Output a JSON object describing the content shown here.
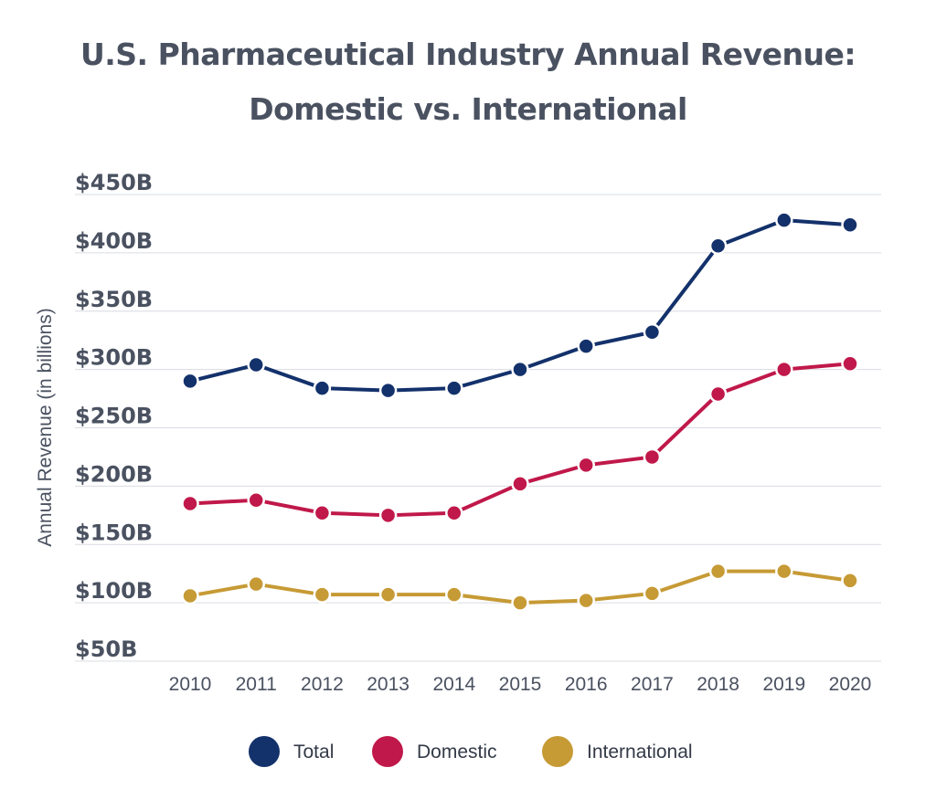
{
  "chart_data": {
    "type": "line",
    "title_lines": [
      "U.S. Pharmaceutical Industry Annual Revenue:",
      "Domestic vs. International"
    ],
    "ylabel": "Annual Revenue (in billions)",
    "xlabel": "",
    "categories": [
      "2010",
      "2011",
      "2012",
      "2013",
      "2014",
      "2015",
      "2016",
      "2017",
      "2018",
      "2019",
      "2020"
    ],
    "ylim": [
      50,
      450
    ],
    "yticks": [
      450,
      400,
      350,
      300,
      250,
      200,
      150,
      100,
      50
    ],
    "ytick_labels": [
      "$450B",
      "$400B",
      "$350B",
      "$300B",
      "$250B",
      "$200B",
      "$150B",
      "$100B",
      "$50B"
    ],
    "grid": true,
    "legend_position": "bottom",
    "series": [
      {
        "name": "Total",
        "color": "#13316b",
        "values": [
          290,
          304,
          284,
          282,
          284,
          300,
          320,
          332,
          406,
          428,
          424
        ]
      },
      {
        "name": "Domestic",
        "color": "#c0184a",
        "values": [
          185,
          188,
          177,
          175,
          177,
          202,
          218,
          225,
          279,
          300,
          305
        ]
      },
      {
        "name": "International",
        "color": "#c69a35",
        "values": [
          106,
          116,
          107,
          107,
          107,
          100,
          102,
          108,
          127,
          127,
          119
        ]
      }
    ]
  }
}
